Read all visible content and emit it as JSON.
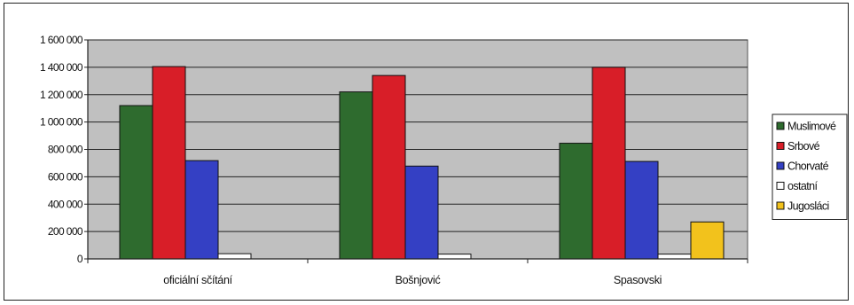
{
  "chart_data": {
    "type": "bar",
    "categories": [
      "oficiální sčítání",
      "Bošnjović",
      "Spasovski"
    ],
    "series": [
      {
        "name": "Muslimové",
        "color": "#2e6b2e",
        "values": [
          1120000,
          1220000,
          845000
        ]
      },
      {
        "name": "Srbové",
        "color": "#d81e28",
        "values": [
          1405000,
          1340000,
          1400000
        ]
      },
      {
        "name": "Chorvaté",
        "color": "#3440c4",
        "values": [
          718000,
          678000,
          712000
        ]
      },
      {
        "name": "ostatní",
        "color": "#ffffff",
        "values": [
          38000,
          35000,
          35000
        ]
      },
      {
        "name": "Jugosláci",
        "color": "#f2c21c",
        "values": [
          0,
          0,
          270000
        ]
      }
    ],
    "ylim": [
      0,
      1600000
    ],
    "yticks": [
      0,
      200000,
      400000,
      600000,
      800000,
      1000000,
      1200000,
      1400000,
      1600000
    ],
    "ytick_labels": [
      "0",
      "200 000",
      "400 000",
      "600 000",
      "800 000",
      "1 000 000",
      "1 200 000",
      "1 400 000",
      "1 600 000"
    ],
    "grid": true,
    "legend": "right",
    "plot_background": "#c0c0c0",
    "title": "",
    "xlabel": "",
    "ylabel": ""
  }
}
